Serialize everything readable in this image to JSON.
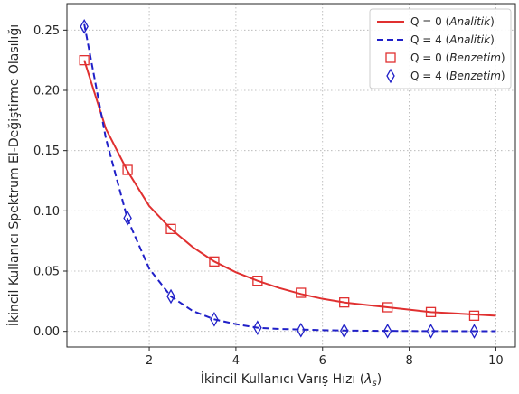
{
  "chart_data": {
    "type": "line",
    "xlabel": "İkincil Kullanıcı Varış Hızı (",
    "xlabel_math": "λ",
    "xlabel_sub": "s",
    "xlabel_close": ")",
    "ylabel": "İkincil Kullanıcı Spektrum El-Değiştirme Olasılığı",
    "xlim": [
      0.1,
      10.45
    ],
    "ylim": [
      -0.013,
      0.272
    ],
    "x_ticks": [
      2,
      4,
      6,
      8,
      10
    ],
    "x_tick_labels": [
      "2",
      "4",
      "6",
      "8",
      "10"
    ],
    "y_ticks": [
      0.0,
      0.05,
      0.1,
      0.15,
      0.2,
      0.25
    ],
    "y_tick_labels": [
      "0.00",
      "0.05",
      "0.10",
      "0.15",
      "0.20",
      "0.25"
    ],
    "grid": true,
    "legend_position": "top-right",
    "series": [
      {
        "name": "Q = 0 (Analitik)",
        "name_prefix": "Q = 0 (",
        "name_italic": "Analitik",
        "name_suffix": ")",
        "style": "line-solid",
        "color": "#e03030",
        "x": [
          0.5,
          1.0,
          1.5,
          2.0,
          2.5,
          3.0,
          3.5,
          4.0,
          4.5,
          5.0,
          5.5,
          6.0,
          6.5,
          7.0,
          7.5,
          8.0,
          8.5,
          9.0,
          9.5,
          10.0
        ],
        "y": [
          0.225,
          0.168,
          0.133,
          0.104,
          0.085,
          0.07,
          0.058,
          0.049,
          0.042,
          0.036,
          0.031,
          0.027,
          0.024,
          0.022,
          0.02,
          0.018,
          0.016,
          0.015,
          0.014,
          0.013
        ]
      },
      {
        "name": "Q = 4 (Analitik)",
        "name_prefix": "Q = 4 (",
        "name_italic": "Analitik",
        "name_suffix": ")",
        "style": "line-dashed",
        "color": "#2020c8",
        "x": [
          0.5,
          1.0,
          1.5,
          2.0,
          2.5,
          3.0,
          3.5,
          4.0,
          4.5,
          5.0,
          5.5,
          6.0,
          6.5,
          7.0,
          7.5,
          8.0,
          8.5,
          9.0,
          9.5,
          10.0
        ],
        "y": [
          0.255,
          0.16,
          0.093,
          0.052,
          0.029,
          0.017,
          0.01,
          0.006,
          0.003,
          0.002,
          0.0015,
          0.001,
          0.0007,
          0.0005,
          0.0004,
          0.0003,
          0.0002,
          0.0002,
          0.0001,
          0.0001
        ]
      },
      {
        "name": "Q = 0 (Benzetim)",
        "name_prefix": "Q = 0 (",
        "name_italic": "Benzetim",
        "name_suffix": ")",
        "style": "marker-square",
        "color": "#e03030",
        "x": [
          0.5,
          1.5,
          2.5,
          3.5,
          4.5,
          5.5,
          6.5,
          7.5,
          8.5,
          9.5
        ],
        "y": [
          0.225,
          0.134,
          0.085,
          0.058,
          0.042,
          0.032,
          0.024,
          0.02,
          0.016,
          0.013
        ]
      },
      {
        "name": "Q = 4 (Benzetim)",
        "name_prefix": "Q = 4 (",
        "name_italic": "Benzetim",
        "name_suffix": ")",
        "style": "marker-diamond",
        "color": "#2020c8",
        "x": [
          0.5,
          1.5,
          2.5,
          3.5,
          4.5,
          5.5,
          6.5,
          7.5,
          8.5,
          9.5
        ],
        "y": [
          0.253,
          0.094,
          0.029,
          0.01,
          0.003,
          0.001,
          0.0005,
          0.0003,
          0.0002,
          0.0001
        ]
      }
    ]
  }
}
